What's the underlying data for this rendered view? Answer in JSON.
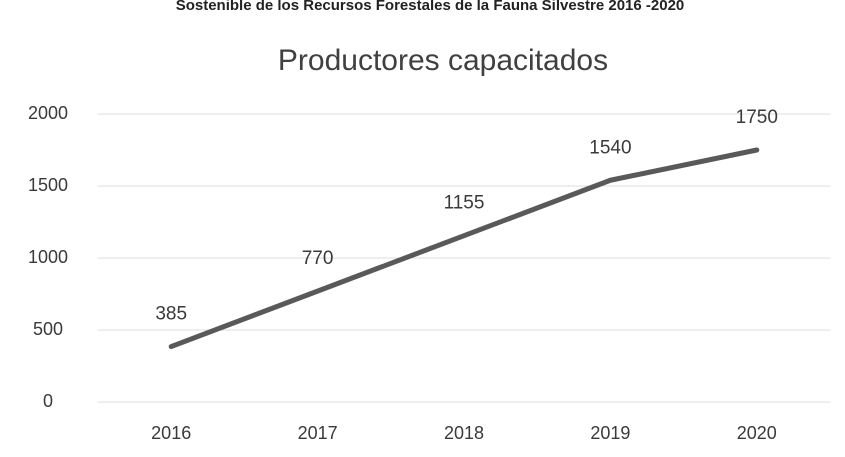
{
  "chart_data": {
    "type": "line",
    "subtitle": "Sostenible de los Recursos Forestales de la Fauna Silvestre 2016 -2020",
    "title": "Productores capacitados",
    "categories": [
      "2016",
      "2017",
      "2018",
      "2019",
      "2020"
    ],
    "series": [
      {
        "name": "Productores capacitados",
        "color": "#595959",
        "values": [
          385,
          770,
          1155,
          1540,
          1750
        ]
      }
    ],
    "ylim": [
      0,
      2000
    ],
    "yticks": [
      0,
      500,
      1000,
      1500,
      2000
    ],
    "grid": true
  }
}
